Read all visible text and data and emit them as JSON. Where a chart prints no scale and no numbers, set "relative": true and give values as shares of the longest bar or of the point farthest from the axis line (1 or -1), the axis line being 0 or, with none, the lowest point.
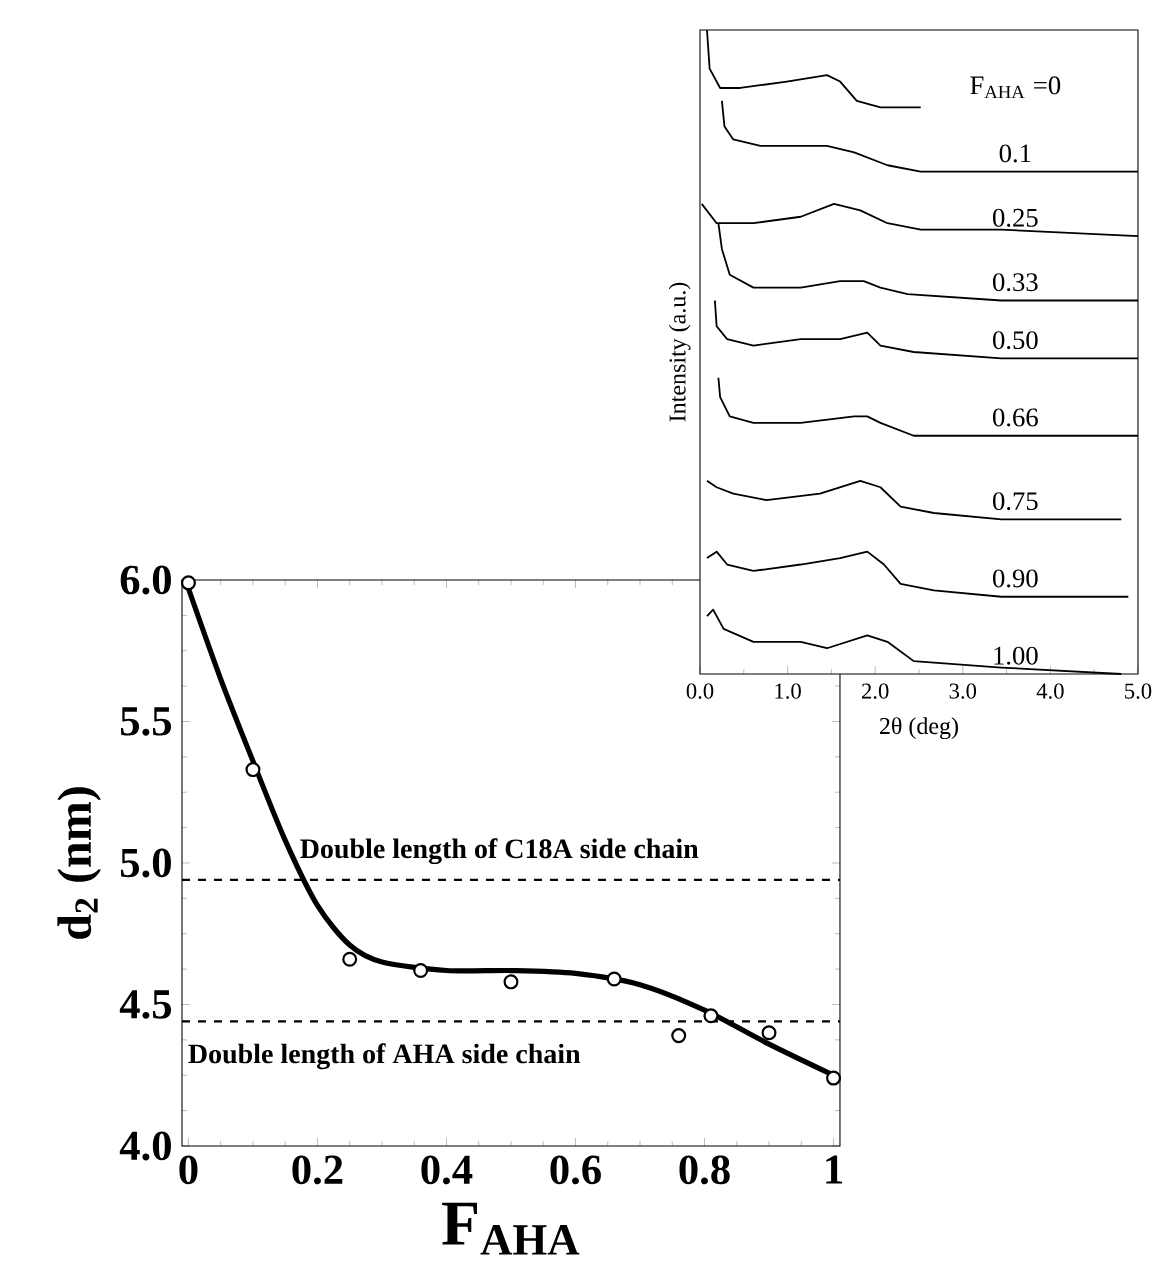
{
  "chart_data": [
    {
      "type": "line",
      "relative": true,
      "xlabel": "2θ (deg)",
      "ylabel": "Intensity (a.u.)",
      "xlim": [
        0,
        5
      ],
      "xticks": [
        {
          "value": 0,
          "label": "0.0"
        },
        {
          "value": 1,
          "label": "1.0"
        },
        {
          "value": 2,
          "label": "2.0"
        },
        {
          "value": 3,
          "label": "3.0"
        },
        {
          "value": 4,
          "label": "4.0"
        },
        {
          "value": 5,
          "label": "5.0"
        }
      ],
      "series": [
        {
          "name": "F$_{AHA}$ =0",
          "color": "#000000",
          "x": [
            0.08,
            0.11,
            0.23,
            0.46,
            0.99,
            1.45,
            1.6,
            1.79,
            2.06,
            2.52
          ],
          "values": [
            1.0,
            0.94,
            0.91,
            0.91,
            0.92,
            0.93,
            0.92,
            0.89,
            0.88,
            0.88
          ]
        },
        {
          "name": "0.1",
          "color": "#000000",
          "x": [
            0.25,
            0.28,
            0.38,
            0.69,
            1.15,
            1.45,
            1.76,
            2.14,
            2.52,
            3.44,
            5.0
          ],
          "values": [
            0.89,
            0.85,
            0.83,
            0.82,
            0.82,
            0.82,
            0.81,
            0.79,
            0.78,
            0.78,
            0.78
          ]
        },
        {
          "name": "0.25",
          "color": "#000000",
          "x": [
            0.02,
            0.19,
            0.61,
            1.15,
            1.53,
            1.83,
            2.14,
            2.52,
            3.44,
            5.0
          ],
          "values": [
            0.73,
            0.7,
            0.7,
            0.71,
            0.73,
            0.72,
            0.7,
            0.69,
            0.69,
            0.68
          ]
        },
        {
          "name": "0.33",
          "color": "#000000",
          "x": [
            0.21,
            0.25,
            0.34,
            0.61,
            1.15,
            1.6,
            1.87,
            2.06,
            2.37,
            3.44,
            5.0
          ],
          "values": [
            0.7,
            0.66,
            0.62,
            0.6,
            0.6,
            0.61,
            0.61,
            0.6,
            0.59,
            0.58,
            0.58
          ]
        },
        {
          "name": "0.50",
          "color": "#000000",
          "x": [
            0.17,
            0.19,
            0.31,
            0.61,
            1.15,
            1.6,
            1.91,
            2.06,
            2.44,
            3.44,
            5.0
          ],
          "values": [
            0.58,
            0.54,
            0.52,
            0.51,
            0.52,
            0.52,
            0.53,
            0.51,
            0.5,
            0.49,
            0.49
          ]
        },
        {
          "name": "0.66",
          "color": "#000000",
          "x": [
            0.21,
            0.23,
            0.34,
            0.61,
            1.15,
            1.76,
            1.91,
            2.06,
            2.44,
            3.44,
            5.0
          ],
          "values": [
            0.46,
            0.43,
            0.4,
            0.39,
            0.39,
            0.4,
            0.4,
            0.39,
            0.37,
            0.37,
            0.37
          ]
        },
        {
          "name": "0.75",
          "color": "#000000",
          "x": [
            0.08,
            0.19,
            0.38,
            0.76,
            1.37,
            1.83,
            2.06,
            2.29,
            2.67,
            3.44,
            4.81
          ],
          "values": [
            0.3,
            0.29,
            0.28,
            0.27,
            0.28,
            0.3,
            0.29,
            0.26,
            0.25,
            0.24,
            0.24
          ]
        },
        {
          "name": "0.90",
          "color": "#000000",
          "x": [
            0.08,
            0.19,
            0.31,
            0.61,
            1.15,
            1.6,
            1.91,
            2.1,
            2.29,
            2.67,
            3.44,
            4.89
          ],
          "values": [
            0.18,
            0.19,
            0.17,
            0.16,
            0.17,
            0.18,
            0.19,
            0.17,
            0.14,
            0.13,
            0.12,
            0.12
          ]
        },
        {
          "name": "1.00",
          "color": "#000000",
          "x": [
            0.08,
            0.15,
            0.27,
            0.61,
            1.15,
            1.45,
            1.68,
            1.91,
            2.14,
            2.44,
            3.44,
            4.81
          ],
          "values": [
            0.09,
            0.1,
            0.07,
            0.05,
            0.05,
            0.04,
            0.05,
            0.06,
            0.05,
            0.02,
            0.01,
            0.0
          ]
        }
      ]
    },
    {
      "type": "scatter",
      "xlabel": "F$_{AHA}$",
      "ylabel": "d$_{2}$ (nm)",
      "xlim": [
        -0.01,
        1.01
      ],
      "ylim": [
        4,
        6
      ],
      "xticks": [
        0,
        0.2,
        0.4,
        0.6,
        0.8,
        1
      ],
      "yticks": [
        {
          "value": 4,
          "label": "4.0"
        },
        4.5,
        {
          "value": 5,
          "label": "5.0"
        },
        5.5,
        {
          "value": 6,
          "label": "6.0"
        }
      ],
      "ref_lines": [
        {
          "axis": "y",
          "value": 4.94,
          "label": "Double length of C18A side chain",
          "line_style": "dashed"
        },
        {
          "axis": "y",
          "value": 4.44,
          "label": "Double length of AHA side chain",
          "line_style": "dashed"
        }
      ],
      "series": [
        {
          "type": "line",
          "color": "#000000",
          "marker": "none",
          "x": [
            0,
            0.05,
            0.1,
            0.15,
            0.2,
            0.25,
            0.3,
            0.4,
            0.5,
            0.6,
            0.7,
            0.8,
            0.9,
            1.0
          ],
          "values": [
            5.97,
            5.65,
            5.36,
            5.08,
            4.85,
            4.71,
            4.65,
            4.62,
            4.62,
            4.61,
            4.57,
            4.48,
            4.36,
            4.25
          ]
        },
        {
          "type": "scatter",
          "color": "#000000",
          "marker": "circle",
          "x": [
            0,
            0.1,
            0.25,
            0.36,
            0.5,
            0.66,
            0.76,
            0.81,
            0.9,
            1.0
          ],
          "values": [
            5.99,
            5.33,
            4.66,
            4.62,
            4.58,
            4.59,
            4.39,
            4.46,
            4.4,
            4.24
          ]
        }
      ]
    }
  ]
}
